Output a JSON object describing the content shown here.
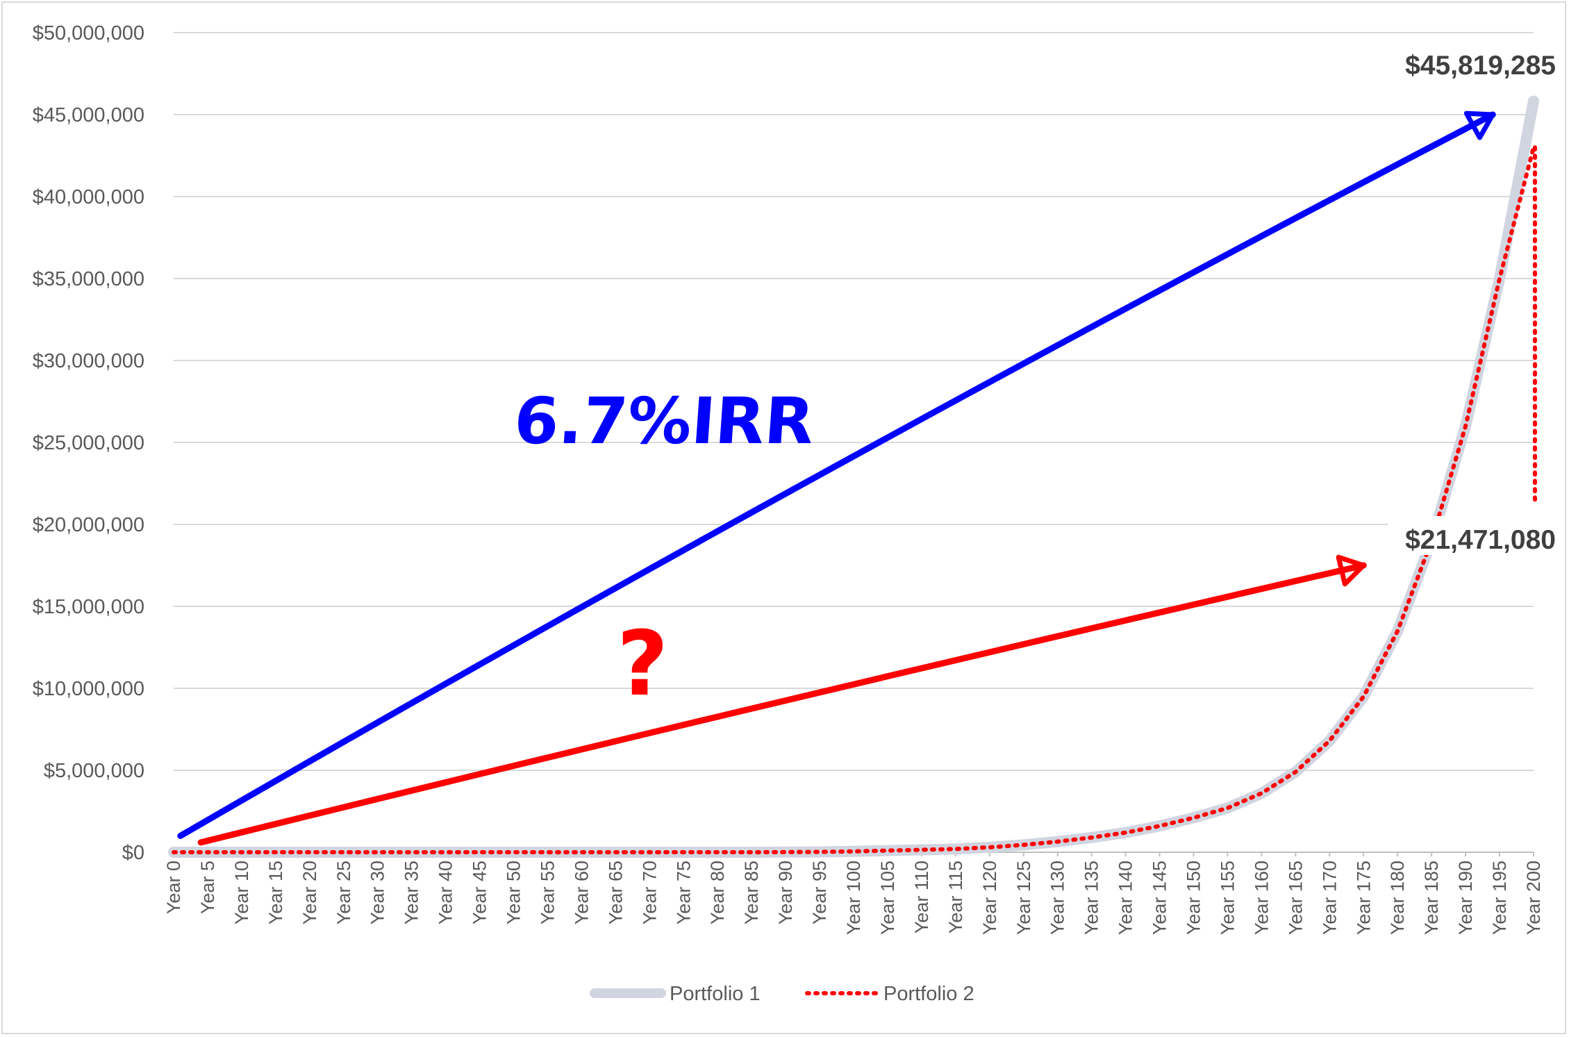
{
  "chart_data": {
    "type": "line",
    "title": "",
    "xlabel": "",
    "ylabel": "",
    "ylim": [
      0,
      50000000
    ],
    "y_ticks": [
      "$0",
      "$5,000,000",
      "$10,000,000",
      "$15,000,000",
      "$20,000,000",
      "$25,000,000",
      "$30,000,000",
      "$35,000,000",
      "$40,000,000",
      "$45,000,000",
      "$50,000,000"
    ],
    "x_ticks": [
      "Year 0",
      "Year 5",
      "Year 10",
      "Year 15",
      "Year 20",
      "Year 25",
      "Year 30",
      "Year 35",
      "Year 40",
      "Year 45",
      "Year 50",
      "Year 55",
      "Year 60",
      "Year 65",
      "Year 70",
      "Year 75",
      "Year 80",
      "Year 85",
      "Year 90",
      "Year 95",
      "Year 100",
      "Year 105",
      "Year 110",
      "Year 115",
      "Year 120",
      "Year 125",
      "Year 130",
      "Year 135",
      "Year 140",
      "Year 145",
      "Year 150",
      "Year 155",
      "Year 160",
      "Year 165",
      "Year 170",
      "Year 175",
      "Year 180",
      "Year 185",
      "Year 190",
      "Year 195",
      "Year 200"
    ],
    "x": [
      0,
      5,
      10,
      15,
      20,
      25,
      30,
      35,
      40,
      45,
      50,
      55,
      60,
      65,
      70,
      75,
      80,
      85,
      90,
      95,
      100,
      105,
      110,
      115,
      120,
      125,
      130,
      135,
      140,
      145,
      150,
      155,
      160,
      165,
      170,
      175,
      180,
      185,
      190,
      195,
      200
    ],
    "grid": true,
    "legend_position": "bottom",
    "series": [
      {
        "name": "Portfolio 1",
        "color": "#d0d5e0",
        "style": "solid-thick",
        "values": [
          0,
          0,
          0,
          0,
          0,
          0,
          0,
          0,
          0,
          0,
          0,
          0,
          0,
          0,
          0,
          0,
          0,
          0,
          10000,
          20000,
          50000,
          100000,
          150000,
          200000,
          300000,
          450000,
          650000,
          900000,
          1200000,
          1600000,
          2100000,
          2700000,
          3600000,
          4900000,
          6800000,
          9500000,
          13500000,
          19000000,
          26000000,
          35000000,
          45819285
        ]
      },
      {
        "name": "Portfolio 2",
        "color": "#ff0000",
        "style": "dotted",
        "values": [
          0,
          0,
          0,
          0,
          0,
          0,
          0,
          0,
          0,
          0,
          0,
          0,
          0,
          0,
          0,
          0,
          0,
          0,
          10000,
          20000,
          50000,
          100000,
          150000,
          200000,
          300000,
          450000,
          650000,
          900000,
          1200000,
          1600000,
          2100000,
          2700000,
          3600000,
          4900000,
          6800000,
          9500000,
          13500000,
          19000000,
          26000000,
          35000000,
          43000000
        ],
        "final_drop_to": 21471080
      }
    ],
    "annotations": [
      {
        "text": "$45,819,285",
        "type": "callout"
      },
      {
        "text": "$21,471,080",
        "type": "callout"
      },
      {
        "text": "6.7%IRR",
        "type": "handwritten",
        "color": "#0000ff"
      },
      {
        "text": "?",
        "type": "handwritten",
        "color": "#ff0000"
      }
    ],
    "hand_arrows": [
      {
        "color": "#0000ff",
        "from": {
          "x": 1,
          "y": 1000000
        },
        "to": {
          "x": 194,
          "y": 45000000
        }
      },
      {
        "color": "#ff0000",
        "from": {
          "x": 4,
          "y": 600000
        },
        "to": {
          "x": 175,
          "y": 17500000
        }
      }
    ]
  }
}
